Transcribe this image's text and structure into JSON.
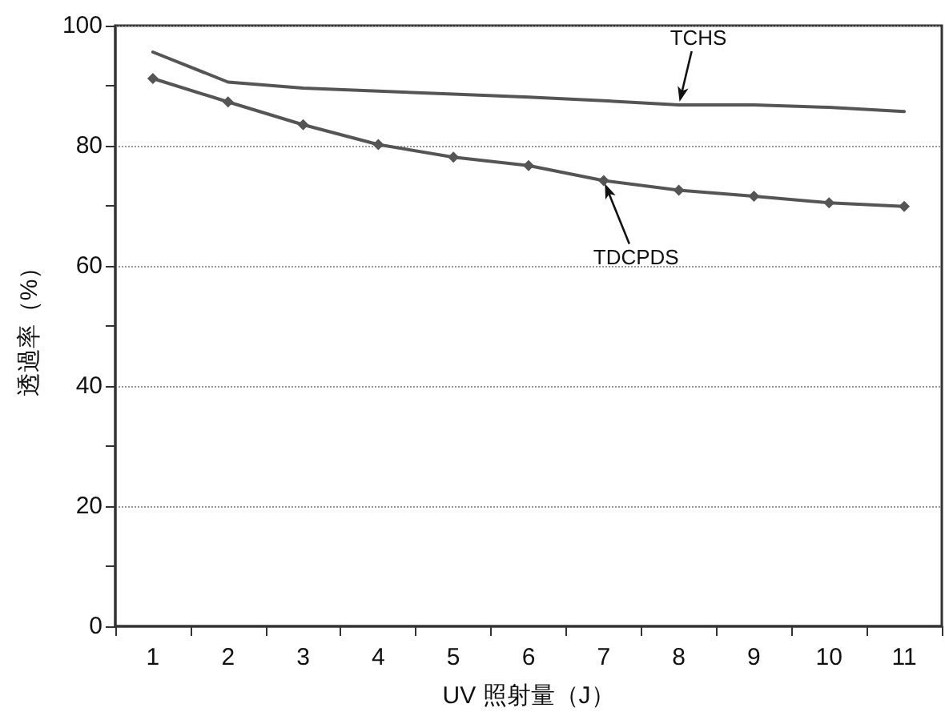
{
  "chart_data": {
    "type": "line",
    "xlabel": "UV 照射量（J）",
    "ylabel": "透過率（%）",
    "categories": [
      "1",
      "2",
      "3",
      "4",
      "5",
      "6",
      "7",
      "8",
      "9",
      "10",
      "11"
    ],
    "ylim": [
      0,
      100
    ],
    "yticks": [
      0,
      {
        "value": 10,
        "label": null
      },
      20,
      {
        "value": 30,
        "label": null
      },
      40,
      {
        "value": 50,
        "label": null
      },
      60,
      {
        "value": 70,
        "label": null
      },
      80,
      {
        "value": 90,
        "label": null
      },
      100
    ],
    "grid": "y",
    "legend": false,
    "line_style": "solid",
    "series": [
      {
        "name": "TCHS",
        "color": "#555555",
        "marker": "none",
        "values": [
          95.6,
          90.6,
          89.6,
          89.1,
          88.6,
          88.1,
          87.5,
          86.8,
          86.8,
          86.4,
          85.7
        ]
      },
      {
        "name": "TDCPDS",
        "color": "#555555",
        "marker": "diamond",
        "values": [
          91.2,
          87.3,
          83.5,
          80.2,
          78.1,
          76.7,
          74.2,
          72.6,
          71.6,
          70.5,
          69.9
        ]
      }
    ]
  }
}
